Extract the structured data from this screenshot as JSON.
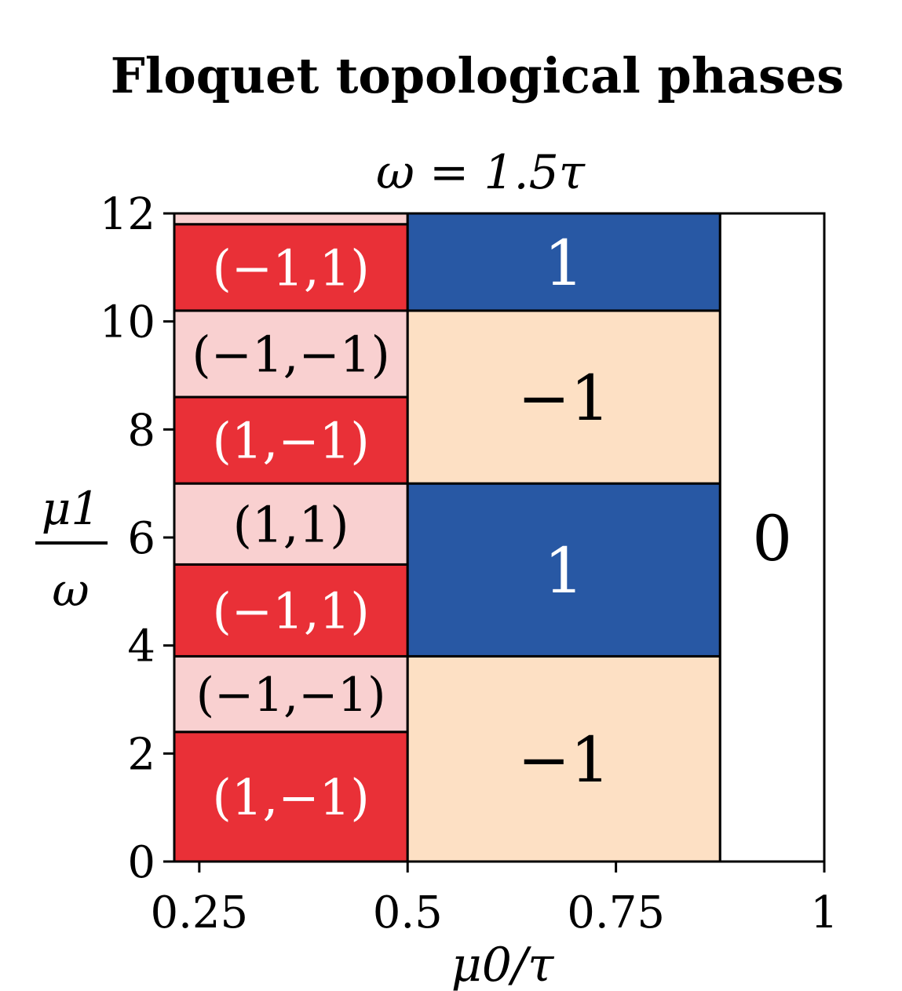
{
  "chart_data": {
    "type": "heatmap",
    "title": "Floquet topological phases",
    "subtitle": "ω = 1.5τ",
    "xlabel": "μ0/τ",
    "ylabel_num": "μ1",
    "ylabel_den": "ω",
    "xlim": [
      0.22,
      1.0
    ],
    "ylim": [
      0,
      12
    ],
    "xticks": [
      {
        "value": 0.25,
        "label": "0.25"
      },
      {
        "value": 0.5,
        "label": "0.5"
      },
      {
        "value": 0.75,
        "label": "0.75"
      },
      {
        "value": 1.0,
        "label": "1"
      }
    ],
    "yticks": [
      {
        "value": 0,
        "label": "0"
      },
      {
        "value": 2,
        "label": "2"
      },
      {
        "value": 4,
        "label": "4"
      },
      {
        "value": 6,
        "label": "6"
      },
      {
        "value": 8,
        "label": "8"
      },
      {
        "value": 10,
        "label": "10"
      },
      {
        "value": 12,
        "label": "12"
      }
    ],
    "colors": {
      "red": "#e93037",
      "pink": "#f9d0d0",
      "blue": "#2858a4",
      "peach": "#fde0c4",
      "white": "#ffffff"
    },
    "regions": [
      {
        "x": [
          0.22,
          0.5
        ],
        "y": [
          0,
          2.4
        ],
        "color": "red",
        "label": "(1,−1)",
        "text_color": "#ffffff"
      },
      {
        "x": [
          0.22,
          0.5
        ],
        "y": [
          2.4,
          3.8
        ],
        "color": "pink",
        "label": "(−1,−1)",
        "text_color": "#000000"
      },
      {
        "x": [
          0.22,
          0.5
        ],
        "y": [
          3.8,
          5.5
        ],
        "color": "red",
        "label": "(−1,1)",
        "text_color": "#ffffff"
      },
      {
        "x": [
          0.22,
          0.5
        ],
        "y": [
          5.5,
          7.0
        ],
        "color": "pink",
        "label": "(1,1)",
        "text_color": "#000000"
      },
      {
        "x": [
          0.22,
          0.5
        ],
        "y": [
          7.0,
          8.6
        ],
        "color": "red",
        "label": "(1,−1)",
        "text_color": "#ffffff"
      },
      {
        "x": [
          0.22,
          0.5
        ],
        "y": [
          8.6,
          10.2
        ],
        "color": "pink",
        "label": "(−1,−1)",
        "text_color": "#000000"
      },
      {
        "x": [
          0.22,
          0.5
        ],
        "y": [
          10.2,
          11.8
        ],
        "color": "red",
        "label": "(−1,1)",
        "text_color": "#ffffff"
      },
      {
        "x": [
          0.22,
          0.5
        ],
        "y": [
          11.8,
          12.0
        ],
        "color": "pink",
        "label": "",
        "text_color": "#000000"
      },
      {
        "x": [
          0.5,
          0.875
        ],
        "y": [
          0,
          3.8
        ],
        "color": "peach",
        "label": "−1",
        "text_color": "#000000"
      },
      {
        "x": [
          0.5,
          0.875
        ],
        "y": [
          3.8,
          7.0
        ],
        "color": "blue",
        "label": "1",
        "text_color": "#ffffff"
      },
      {
        "x": [
          0.5,
          0.875
        ],
        "y": [
          7.0,
          10.2
        ],
        "color": "peach",
        "label": "−1",
        "text_color": "#000000"
      },
      {
        "x": [
          0.5,
          0.875
        ],
        "y": [
          10.2,
          12.0
        ],
        "color": "blue",
        "label": "1",
        "text_color": "#ffffff"
      },
      {
        "x": [
          0.875,
          1.0
        ],
        "y": [
          0,
          12.0
        ],
        "color": "white",
        "label": "0",
        "text_color": "#000000"
      }
    ]
  }
}
